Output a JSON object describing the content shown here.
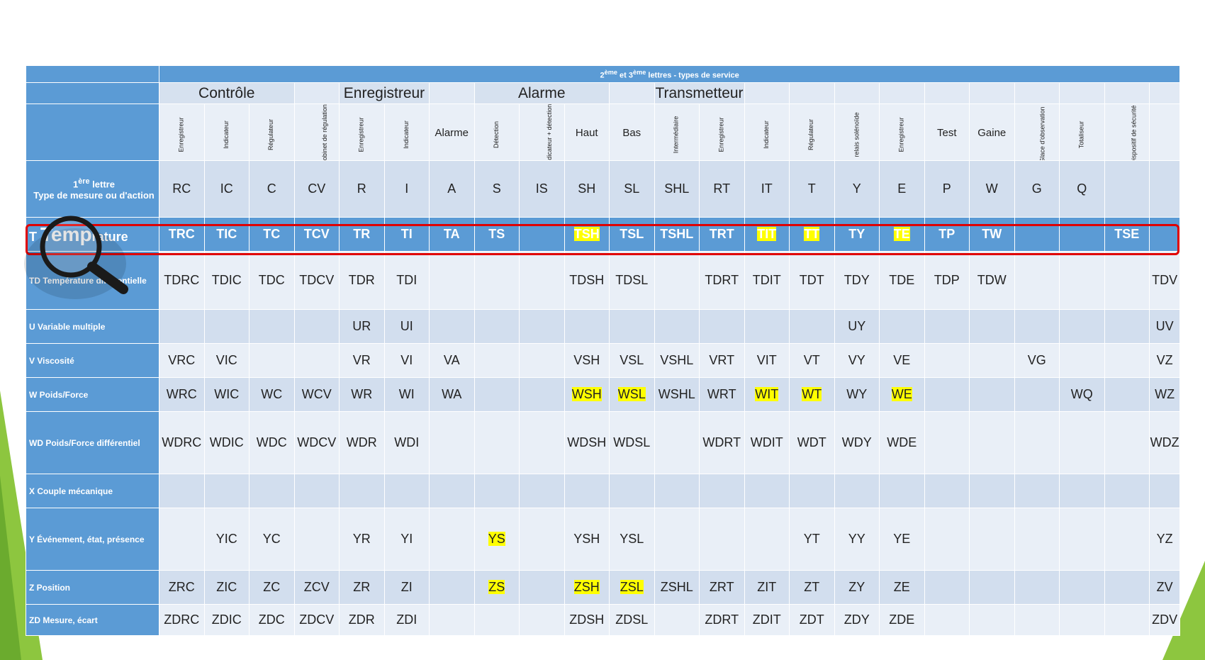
{
  "header": {
    "sup2": "ème",
    "sup3": "ème",
    "prefix2": "2",
    "mid": " et 3",
    "title_rest": " lettres - types de service"
  },
  "groups": [
    "Contrôle",
    "Enregistreur",
    "Alarme",
    "Transmetteur"
  ],
  "subheaders": [
    {
      "text": "Enregistreur",
      "rot": true
    },
    {
      "text": "Indicateur",
      "rot": true
    },
    {
      "text": "Régulateur",
      "rot": true
    },
    {
      "text": "Robinet de régulation",
      "rot": true
    },
    {
      "text": "Enregistreur",
      "rot": true
    },
    {
      "text": "Indicateur",
      "rot": true
    },
    {
      "text": "Alarme",
      "rot": false
    },
    {
      "text": "Détection",
      "rot": true
    },
    {
      "text": "Indicateur + détection",
      "rot": true
    },
    {
      "text": "Haut",
      "rot": false
    },
    {
      "text": "Bas",
      "rot": false
    },
    {
      "text": "Intermédiaire",
      "rot": true
    },
    {
      "text": "Enregistreur",
      "rot": true
    },
    {
      "text": "Indicateur",
      "rot": true
    },
    {
      "text": "Régulateur",
      "rot": true
    },
    {
      "text": "relais solénoïde",
      "rot": true
    },
    {
      "text": "Enregistreur",
      "rot": true
    },
    {
      "text": "Test",
      "rot": false
    },
    {
      "text": "Gaine",
      "rot": false
    },
    {
      "text": "Glace d'observation",
      "rot": true
    },
    {
      "text": "Totaliseur",
      "rot": true
    },
    {
      "text": "Dispositif de sécurité",
      "rot": true
    },
    {
      "text": "",
      "rot": false
    }
  ],
  "first_letter_label": {
    "sup": "ère",
    "pre": "1",
    "post": " lettre",
    "line2": "Type de mesure ou d'action"
  },
  "letters": [
    "RC",
    "IC",
    "C",
    "CV",
    "R",
    "I",
    "A",
    "S",
    "IS",
    "SH",
    "SL",
    "SHL",
    "RT",
    "IT",
    "T",
    "Y",
    "E",
    "P",
    "W",
    "G",
    "Q",
    "",
    ""
  ],
  "rows": [
    {
      "label_pre": "T ",
      "label_big": "Temp",
      "label_post": "rature",
      "blue": true,
      "cells": [
        "TRC",
        "TIC",
        "TC",
        "TCV",
        "TR",
        "TI",
        "TA",
        "TS",
        "",
        "TSH",
        "TSL",
        "TSHL",
        "TRT",
        "TIT",
        "TT",
        "TY",
        "TE",
        "TP",
        "TW",
        "",
        "",
        "TSE",
        ""
      ],
      "hl": [
        9,
        13,
        14,
        16
      ]
    },
    {
      "label": "TD Température différentielle",
      "cells": [
        "TDRC",
        "TDIC",
        "TDC",
        "TDCV",
        "TDR",
        "TDI",
        "",
        "",
        "",
        "TDSH",
        "TDSL",
        "",
        "TDRT",
        "TDIT",
        "TDT",
        "TDY",
        "TDE",
        "TDP",
        "TDW",
        "",
        "",
        "",
        "TDV"
      ],
      "hl": []
    },
    {
      "label": "U Variable multiple",
      "cells": [
        "",
        "",
        "",
        "",
        "UR",
        "UI",
        "",
        "",
        "",
        "",
        "",
        "",
        "",
        "",
        "",
        "UY",
        "",
        "",
        "",
        "",
        "",
        "",
        "UV"
      ],
      "hl": []
    },
    {
      "label": "V Viscosité",
      "cells": [
        "VRC",
        "VIC",
        "",
        "",
        "VR",
        "VI",
        "VA",
        "",
        "",
        "VSH",
        "VSL",
        "VSHL",
        "VRT",
        "VIT",
        "VT",
        "VY",
        "VE",
        "",
        "",
        "VG",
        "",
        "",
        "VZ"
      ],
      "hl": []
    },
    {
      "label": "W Poids/Force",
      "cells": [
        "WRC",
        "WIC",
        "WC",
        "WCV",
        "WR",
        "WI",
        "WA",
        "",
        "",
        "WSH",
        "WSL",
        "WSHL",
        "WRT",
        "WIT",
        "WT",
        "WY",
        "WE",
        "",
        "",
        "",
        "WQ",
        "",
        "WZ"
      ],
      "hl": [
        9,
        10,
        13,
        14,
        16
      ]
    },
    {
      "label": "WD Poids/Force différentiel",
      "cells": [
        "WDRC",
        "WDIC",
        "WDC",
        "WDCV",
        "WDR",
        "WDI",
        "",
        "",
        "",
        "WDSH",
        "WDSL",
        "",
        "WDRT",
        "WDIT",
        "WDT",
        "WDY",
        "WDE",
        "",
        "",
        "",
        "",
        "",
        "WDZ"
      ],
      "hl": []
    },
    {
      "label": "X Couple mécanique",
      "cells": [
        "",
        "",
        "",
        "",
        "",
        "",
        "",
        "",
        "",
        "",
        "",
        "",
        "",
        "",
        "",
        "",
        "",
        "",
        "",
        "",
        "",
        "",
        ""
      ],
      "hl": []
    },
    {
      "label": "Y Événement, état, présence",
      "cells": [
        "",
        "YIC",
        "YC",
        "",
        "YR",
        "YI",
        "",
        "YS",
        "",
        "YSH",
        "YSL",
        "",
        "",
        "",
        "YT",
        "YY",
        "YE",
        "",
        "",
        "",
        "",
        "",
        "YZ"
      ],
      "hl": [
        7
      ]
    },
    {
      "label": "Z Position",
      "cells": [
        "ZRC",
        "ZIC",
        "ZC",
        "ZCV",
        "ZR",
        "ZI",
        "",
        "ZS",
        "",
        "ZSH",
        "ZSL",
        "ZSHL",
        "ZRT",
        "ZIT",
        "ZT",
        "ZY",
        "ZE",
        "",
        "",
        "",
        "",
        "",
        "ZV"
      ],
      "hl": [
        7,
        9,
        10
      ]
    },
    {
      "label": "ZD Mesure, écart",
      "cells": [
        "ZDRC",
        "ZDIC",
        "ZDC",
        "ZDCV",
        "ZDR",
        "ZDI",
        "",
        "",
        "",
        "ZDSH",
        "ZDSL",
        "",
        "ZDRT",
        "ZDIT",
        "ZDT",
        "ZDY",
        "ZDE",
        "",
        "",
        "",
        "",
        "",
        "ZDV"
      ],
      "hl": []
    }
  ],
  "colors": {
    "accent_blue": "#5b9bd5",
    "highlight": "#ffff00",
    "frame_red": "#e00000",
    "deco_green": "#8dc63f"
  }
}
